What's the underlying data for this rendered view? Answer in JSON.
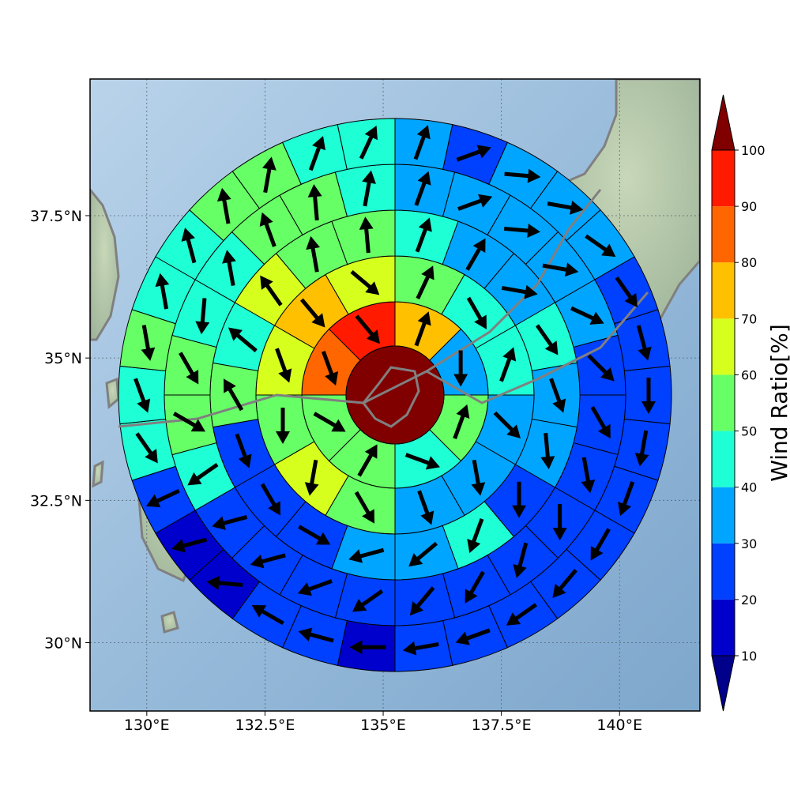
{
  "chart_data": {
    "type": "heatmap",
    "title": "",
    "colorbar": {
      "label": "Wind Ratio[%]",
      "levels": [
        10,
        20,
        30,
        40,
        50,
        60,
        70,
        80,
        90,
        100
      ],
      "tick_labels": [
        "10",
        "20",
        "30",
        "40",
        "50",
        "60",
        "70",
        "80",
        "90",
        "100"
      ],
      "bin_colors": [
        "#0000cd",
        "#0040ff",
        "#00a5ff",
        "#1effd6",
        "#66ff66",
        "#d6ff1e",
        "#ffc000",
        "#ff6600",
        "#ff1a00"
      ],
      "under_color": "#00008b",
      "over_color": "#800000"
    },
    "x_ticks": [
      "130°E",
      "132.5°E",
      "135°E",
      "137.5°E",
      "140°E"
    ],
    "x_tick_values": [
      130,
      132.5,
      135,
      137.5,
      140
    ],
    "y_ticks": [
      "30°N",
      "32.5°N",
      "35°N",
      "37.5°N"
    ],
    "y_tick_values": [
      30,
      32.5,
      35,
      37.5
    ],
    "xlim": [
      128.8,
      141.7
    ],
    "ylim": [
      28.8,
      39.9
    ],
    "polar_grid": {
      "center_lon": 135.25,
      "center_lat": 34.35,
      "center_value": 100,
      "rings": [
        {
          "sector_start_bearing": 0,
          "values": [
            71,
            37,
            57,
            42,
            55,
            58,
            88,
            93
          ]
        },
        {
          "sector_start_bearing": 0,
          "values": [
            57,
            43,
            45,
            38,
            35,
            33,
            52,
            62,
            55,
            62,
            72,
            67
          ]
        },
        {
          "sector_start_bearing": 0,
          "values": [
            43,
            33,
            35,
            45,
            34,
            35,
            22,
            40,
            30,
            34,
            22,
            23,
            27,
            57,
            48,
            62,
            56,
            55
          ]
        },
        {
          "sector_start_bearing": 0,
          "values": [
            33,
            35,
            37,
            34,
            37,
            28,
            28,
            26,
            25,
            25,
            24,
            28,
            22,
            20,
            23,
            25,
            48,
            58,
            53,
            45,
            48,
            55,
            52,
            47
          ]
        },
        {
          "sector_start_bearing": 0,
          "values": [
            33,
            20,
            37,
            37,
            37,
            25,
            27,
            25,
            20,
            20,
            25,
            22,
            20,
            24,
            22,
            13,
            22,
            24,
            11,
            14,
            23,
            47,
            44,
            53,
            45,
            45,
            55,
            58,
            45,
            45
          ]
        }
      ],
      "wind_bearings": [
        [
          20,
          180,
          20,
          110,
          30,
          120,
          160,
          140
        ],
        [
          25,
          150,
          20,
          135,
          170,
          160,
          150,
          190,
          180,
          160,
          140,
          130
        ],
        [
          20,
          30,
          100,
          145,
          160,
          175,
          180,
          200,
          230,
          255,
          120,
          150,
          160,
          330,
          310,
          325,
          350,
          355
        ],
        [
          20,
          70,
          95,
          100,
          115,
          135,
          150,
          170,
          180,
          195,
          210,
          220,
          235,
          250,
          255,
          255,
          235,
          120,
          150,
          185,
          350,
          340,
          355,
          10
        ],
        [
          20,
          70,
          95,
          100,
          125,
          145,
          165,
          180,
          190,
          200,
          210,
          220,
          235,
          250,
          260,
          270,
          285,
          300,
          275,
          255,
          245,
          145,
          160,
          170,
          350,
          345,
          350,
          10,
          20,
          25
        ]
      ]
    }
  }
}
